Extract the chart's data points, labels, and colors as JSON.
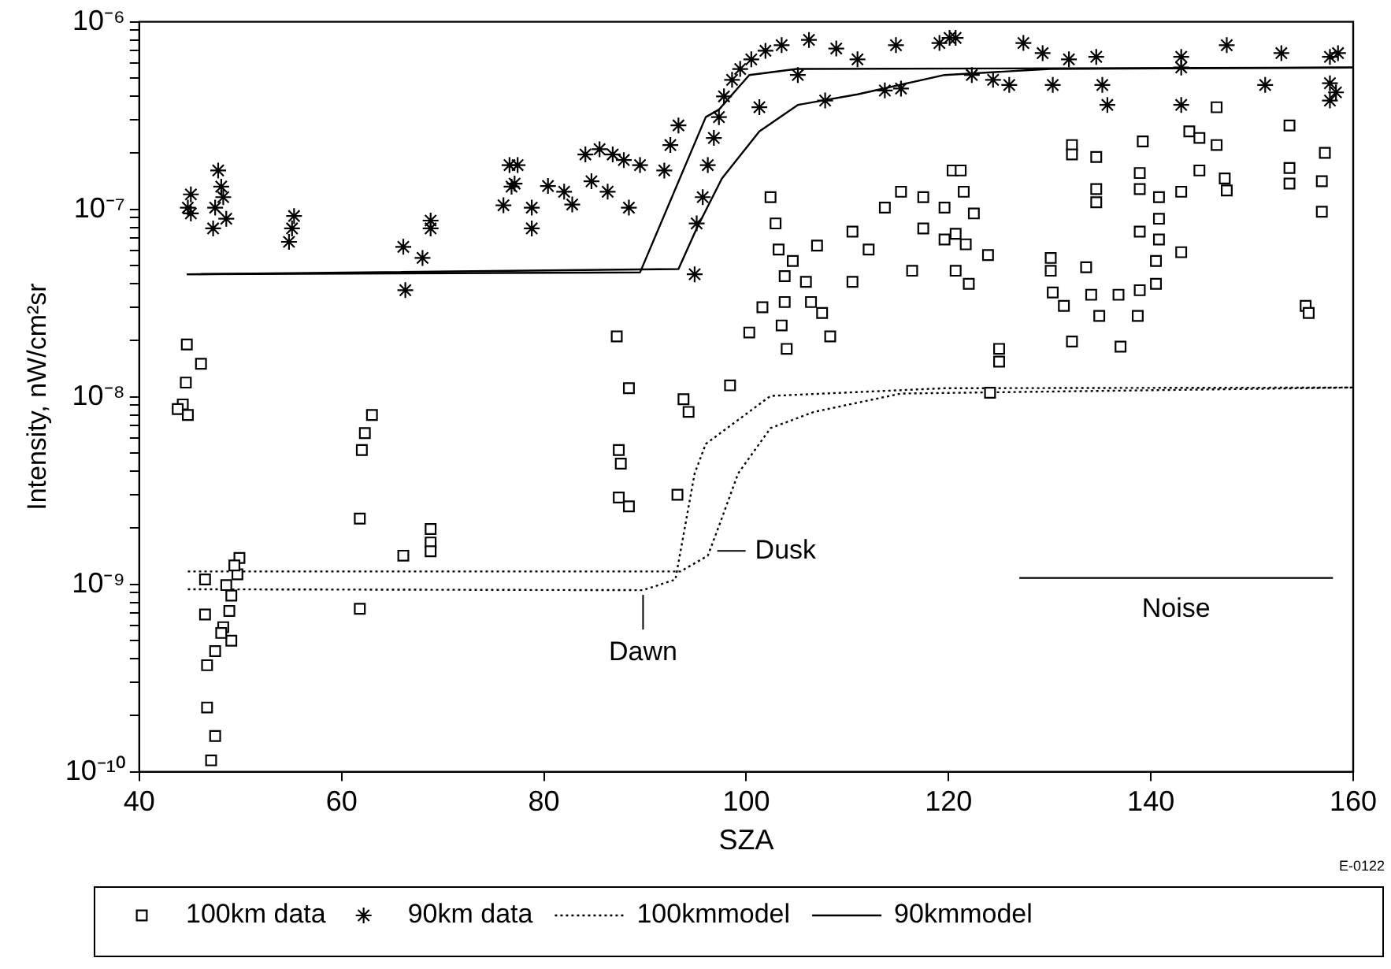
{
  "chart_data": {
    "type": "scatter",
    "xlabel": "SZA",
    "ylabel": "Intensity, nW/cm²sr",
    "log": "y",
    "grid": false,
    "legend": "bottom",
    "xlim": [
      40,
      160
    ],
    "xticks": [
      40,
      60,
      80,
      100,
      120,
      140,
      160
    ],
    "ylim": [
      1e-10,
      1e-06
    ],
    "yticks": [
      {
        "value": 1e-10,
        "label": "10⁻¹⁰"
      },
      {
        "value": 2e-10,
        "label": null
      },
      {
        "value": 3e-10,
        "label": null
      },
      {
        "value": 4e-10,
        "label": null
      },
      {
        "value": 5e-10,
        "label": null
      },
      {
        "value": 6e-10,
        "label": null
      },
      {
        "value": 7e-10,
        "label": null
      },
      {
        "value": 8e-10,
        "label": null
      },
      {
        "value": 9e-10,
        "label": null
      },
      {
        "value": 1e-09,
        "label": "10⁻⁹"
      },
      {
        "value": 2e-09,
        "label": null
      },
      {
        "value": 3e-09,
        "label": null
      },
      {
        "value": 4e-09,
        "label": null
      },
      {
        "value": 5e-09,
        "label": null
      },
      {
        "value": 6e-09,
        "label": null
      },
      {
        "value": 7e-09,
        "label": null
      },
      {
        "value": 8e-09,
        "label": null
      },
      {
        "value": 9e-09,
        "label": null
      },
      {
        "value": 1e-08,
        "label": "10⁻⁸"
      },
      {
        "value": 2e-08,
        "label": null
      },
      {
        "value": 3e-08,
        "label": null
      },
      {
        "value": 4e-08,
        "label": null
      },
      {
        "value": 5e-08,
        "label": null
      },
      {
        "value": 6e-08,
        "label": null
      },
      {
        "value": 7e-08,
        "label": null
      },
      {
        "value": 8e-08,
        "label": null
      },
      {
        "value": 9e-08,
        "label": null
      },
      {
        "value": 1e-07,
        "label": "10⁻⁷"
      },
      {
        "value": 2e-07,
        "label": null
      },
      {
        "value": 3e-07,
        "label": null
      },
      {
        "value": 4e-07,
        "label": null
      },
      {
        "value": 5e-07,
        "label": null
      },
      {
        "value": 6e-07,
        "label": null
      },
      {
        "value": 7e-07,
        "label": null
      },
      {
        "value": 8e-07,
        "label": null
      },
      {
        "value": 9e-07,
        "label": null
      },
      {
        "value": 1e-06,
        "label": "10⁻⁶"
      }
    ],
    "series": [
      {
        "name": "100km data",
        "marker": "square",
        "color": "#000000",
        "x": [
          44.7,
          46.1,
          44.6,
          44.3,
          44.8,
          43.8,
          46.5,
          46.5,
          48.3,
          49.1,
          47.5,
          46.7,
          46.7,
          47.5,
          47.1,
          48.6,
          49.1,
          48.9,
          49.7,
          49.9,
          49.4,
          48.1,
          63.0,
          62.3,
          62.0,
          61.8,
          61.8,
          66.1,
          68.8,
          68.8,
          68.8,
          87.2,
          88.4,
          87.4,
          87.6,
          87.4,
          88.4,
          93.2,
          93.8,
          94.3,
          98.4,
          100.3,
          101.6,
          102.4,
          102.9,
          103.2,
          103.8,
          103.8,
          103.5,
          104.0,
          107.0,
          105.9,
          106.4,
          107.5,
          108.3,
          104.6,
          110.5,
          110.5,
          112.1,
          113.7,
          115.3,
          116.4,
          117.5,
          117.5,
          119.6,
          120.4,
          121.2,
          121.5,
          119.6,
          122.5,
          120.7,
          121.7,
          123.9,
          122.0,
          120.7,
          125.0,
          125.0,
          124.1,
          130.1,
          130.1,
          130.3,
          131.4,
          132.2,
          133.6,
          132.2,
          132.2,
          134.6,
          134.6,
          134.6,
          134.1,
          134.9,
          136.8,
          137.0,
          138.7,
          138.9,
          138.9,
          138.9,
          138.9,
          139.2,
          140.5,
          140.5,
          140.8,
          140.8,
          140.8,
          143.0,
          143.0,
          143.8,
          144.8,
          144.8,
          146.5,
          146.5,
          147.3,
          147.5,
          153.7,
          153.7,
          153.7,
          155.3,
          155.6,
          157.2,
          156.9,
          156.9
        ],
        "values": [
          1.9e-08,
          1.5e-08,
          1.19e-08,
          9.1e-09,
          8e-09,
          8.6e-09,
          1.06e-09,
          6.9e-10,
          5.9e-10,
          5e-10,
          4.4e-10,
          3.7e-10,
          2.2e-10,
          1.55e-10,
          1.15e-10,
          9.9e-10,
          8.7e-10,
          7.2e-10,
          1.13e-09,
          1.38e-09,
          1.26e-09,
          5.5e-10,
          8e-09,
          6.4e-09,
          5.2e-09,
          2.24e-09,
          7.4e-10,
          1.42e-09,
          1.97e-09,
          1.67e-09,
          1.5e-09,
          2.1e-08,
          1.11e-08,
          5.2e-09,
          4.4e-09,
          2.9e-09,
          2.6e-09,
          3e-09,
          9.7e-09,
          8.3e-09,
          1.15e-08,
          2.2e-08,
          3e-08,
          1.16e-07,
          8.4e-08,
          6.1e-08,
          4.4e-08,
          3.2e-08,
          2.4e-08,
          1.8e-08,
          6.4e-08,
          4.1e-08,
          3.2e-08,
          2.8e-08,
          2.1e-08,
          5.3e-08,
          7.6e-08,
          4.1e-08,
          6.1e-08,
          1.02e-07,
          1.24e-07,
          4.7e-08,
          1.16e-07,
          7.9e-08,
          6.9e-08,
          1.61e-07,
          1.61e-07,
          1.24e-07,
          1.02e-07,
          9.5e-08,
          7.4e-08,
          6.5e-08,
          5.7e-08,
          4e-08,
          4.7e-08,
          1.8e-08,
          1.54e-08,
          1.05e-08,
          5.5e-08,
          4.7e-08,
          3.6e-08,
          3.05e-08,
          1.97e-08,
          4.9e-08,
          2.2e-07,
          1.96e-07,
          1.9e-07,
          1.28e-07,
          1.09e-07,
          3.5e-08,
          2.7e-08,
          3.5e-08,
          1.85e-08,
          2.7e-08,
          3.7e-08,
          7.6e-08,
          1.56e-07,
          1.28e-07,
          2.3e-07,
          4e-08,
          5.3e-08,
          6.9e-08,
          8.9e-08,
          1.16e-07,
          1.24e-07,
          5.9e-08,
          2.6e-07,
          2.4e-07,
          1.61e-07,
          3.5e-07,
          2.2e-07,
          1.46e-07,
          1.26e-07,
          2.8e-07,
          1.66e-07,
          1.37e-07,
          3.05e-08,
          2.8e-08,
          2e-07,
          1.41e-07,
          9.7e-08
        ]
      },
      {
        "name": "90km data",
        "marker": "cross",
        "color": "#000000",
        "x": [
          45.1,
          44.8,
          45.1,
          47.8,
          48.1,
          47.5,
          47.3,
          48.6,
          48.3,
          54.8,
          55.1,
          55.3,
          66.1,
          66.3,
          68.0,
          68.8,
          68.8,
          76.6,
          76.0,
          76.8,
          77.4,
          77.1,
          78.8,
          78.8,
          80.4,
          82.0,
          82.8,
          84.1,
          85.5,
          86.8,
          87.9,
          84.7,
          86.3,
          88.4,
          89.5,
          91.9,
          92.5,
          93.3,
          94.9,
          95.1,
          95.7,
          96.2,
          96.8,
          97.3,
          97.8,
          98.6,
          99.4,
          100.5,
          101.3,
          101.9,
          103.5,
          105.1,
          106.2,
          107.8,
          108.9,
          111.0,
          113.7,
          114.8,
          115.3,
          119.1,
          120.1,
          120.7,
          122.3,
          124.4,
          126.0,
          127.4,
          129.3,
          130.3,
          131.9,
          134.6,
          135.2,
          135.7,
          143.0,
          143.0,
          143.0,
          147.5,
          151.3,
          152.9,
          157.7,
          158.5,
          157.7,
          157.7,
          158.3
        ],
        "values": [
          1.2e-07,
          1.02e-07,
          9.5e-08,
          1.61e-07,
          1.32e-07,
          1.02e-07,
          7.9e-08,
          8.9e-08,
          1.16e-07,
          6.7e-08,
          7.9e-08,
          9.2e-08,
          6.3e-08,
          3.7e-08,
          5.5e-08,
          8.7e-08,
          7.9e-08,
          1.72e-07,
          1.05e-07,
          1.32e-07,
          1.72e-07,
          1.37e-07,
          1.02e-07,
          7.9e-08,
          1.33e-07,
          1.24e-07,
          1.06e-07,
          1.96e-07,
          2.09e-07,
          1.96e-07,
          1.83e-07,
          1.41e-07,
          1.24e-07,
          1.02e-07,
          1.72e-07,
          1.61e-07,
          2.2e-07,
          2.8e-07,
          4.5e-08,
          8.4e-08,
          1.16e-07,
          1.72e-07,
          2.4e-07,
          3.1e-07,
          4e-07,
          4.9e-07,
          5.6e-07,
          6.3e-07,
          3.5e-07,
          7e-07,
          7.5e-07,
          5.2e-07,
          8e-07,
          3.8e-07,
          7.2e-07,
          6.3e-07,
          4.3e-07,
          7.5e-07,
          4.4e-07,
          7.7e-07,
          8.2e-07,
          8.2e-07,
          5.2e-07,
          4.9e-07,
          4.6e-07,
          7.7e-07,
          6.8e-07,
          4.6e-07,
          6.3e-07,
          6.5e-07,
          4.6e-07,
          3.6e-07,
          6.5e-07,
          5.7e-07,
          3.6e-07,
          7.5e-07,
          4.6e-07,
          6.8e-07,
          6.5e-07,
          6.8e-07,
          4.7e-07,
          3.8e-07,
          4.2e-07
        ]
      },
      {
        "name": "100kmmodel",
        "type": "line",
        "marker": "none",
        "line_style": "dotted",
        "color": "#000000",
        "x": [
          44.8,
          89.8,
          93.0,
          94.9,
          96.0,
          102.4,
          119.6,
          160
        ],
        "values": [
          9.4e-10,
          9.3e-10,
          1.06e-09,
          3.9e-09,
          5.6e-09,
          1.01e-08,
          1.11e-08,
          1.12e-08
        ]
      },
      {
        "type": "line",
        "marker": "none",
        "line_style": "dotted",
        "color": "#000000",
        "x": [
          44.8,
          93.5,
          96.2,
          97.3,
          99.2,
          102.4,
          106.7,
          115.3,
          160
        ],
        "values": [
          1.17e-09,
          1.17e-09,
          1.42e-09,
          2.04e-09,
          3.9e-09,
          6.8e-09,
          8.3e-09,
          1.04e-08,
          1.12e-08
        ]
      },
      {
        "name": "90kmmodel",
        "type": "line",
        "marker": "none",
        "line_style": "solid",
        "color": "#000000",
        "x": [
          44.7,
          89.5,
          96.0,
          97.3,
          100.3,
          105.0,
          160
        ],
        "values": [
          4.5e-08,
          4.6e-08,
          3.1e-07,
          3.4e-07,
          5.2e-07,
          5.6e-07,
          5.7e-07
        ]
      },
      {
        "type": "line",
        "marker": "none",
        "line_style": "solid",
        "color": "#000000",
        "x": [
          44.7,
          93.3,
          95.1,
          97.6,
          101.3,
          105.1,
          111.0,
          119.6,
          130.0,
          160
        ],
        "values": [
          4.5e-08,
          4.8e-08,
          7.9e-08,
          1.46e-07,
          2.6e-07,
          3.6e-07,
          4.1e-07,
          5.2e-07,
          5.6e-07,
          5.7e-07
        ]
      },
      {
        "type": "line",
        "marker": "none",
        "line_style": "solid",
        "color": "#000000",
        "x": [
          127,
          158
        ],
        "values": [
          1.08e-09,
          1.08e-09
        ]
      }
    ],
    "annotations": [
      {
        "text": "Dawn",
        "x": 89.8,
        "y": 9.3e-10
      },
      {
        "text": "Dusk",
        "x": 96.2,
        "y": 1.42e-09
      },
      {
        "text": "Noise",
        "x": 142.5,
        "y": 1.08e-09
      },
      "E-0122"
    ]
  }
}
